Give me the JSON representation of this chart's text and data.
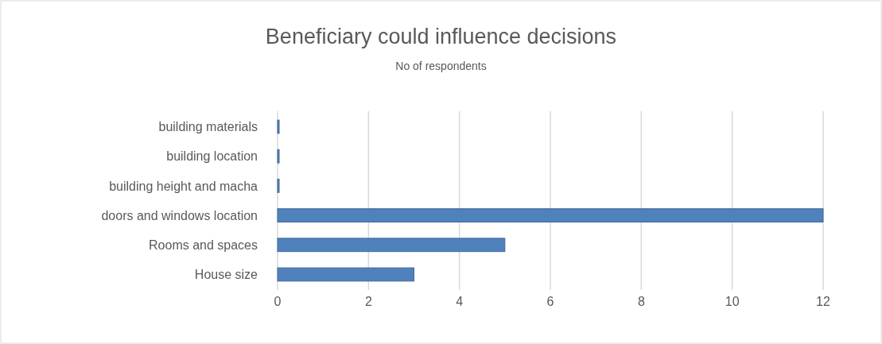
{
  "chart_data": {
    "type": "bar",
    "orientation": "horizontal",
    "title": "Beneficiary could influence decisions",
    "subtitle": "No of respondents",
    "categories": [
      "building materials",
      "building location",
      "building height and macha",
      "doors and windows location",
      "Rooms and spaces",
      "House size"
    ],
    "values": [
      0,
      0,
      0,
      12,
      5,
      3
    ],
    "color": "#4f81bd",
    "xlim": [
      0,
      12
    ],
    "xticks": [
      0,
      2,
      4,
      6,
      8,
      10,
      12
    ],
    "grid": "x"
  }
}
